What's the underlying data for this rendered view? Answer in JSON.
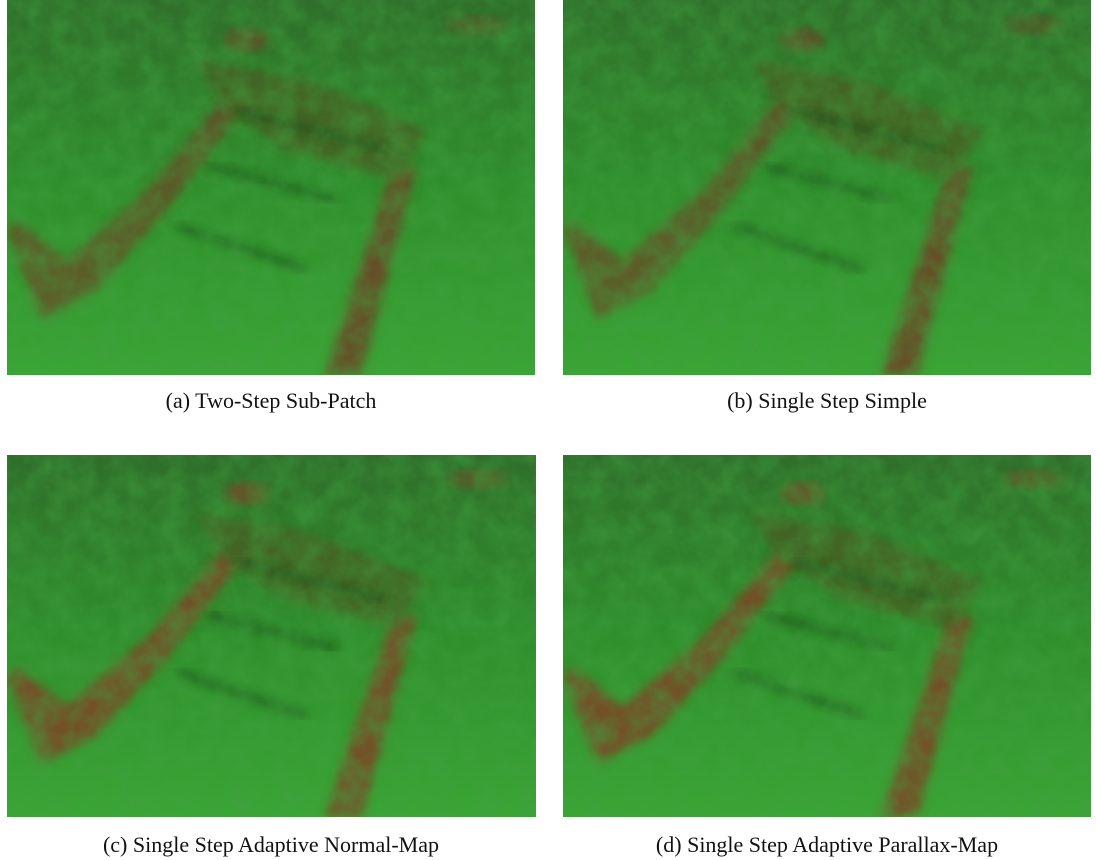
{
  "figures": [
    {
      "label": "(a)",
      "caption": "Two-Step Sub-Patch"
    },
    {
      "label": "(b)",
      "caption": "Single Step Simple"
    },
    {
      "label": "(c)",
      "caption": "Single Step Adaptive Normal-Map"
    },
    {
      "label": "(d)",
      "caption": "Single Step Adaptive Parallax-Map"
    }
  ]
}
